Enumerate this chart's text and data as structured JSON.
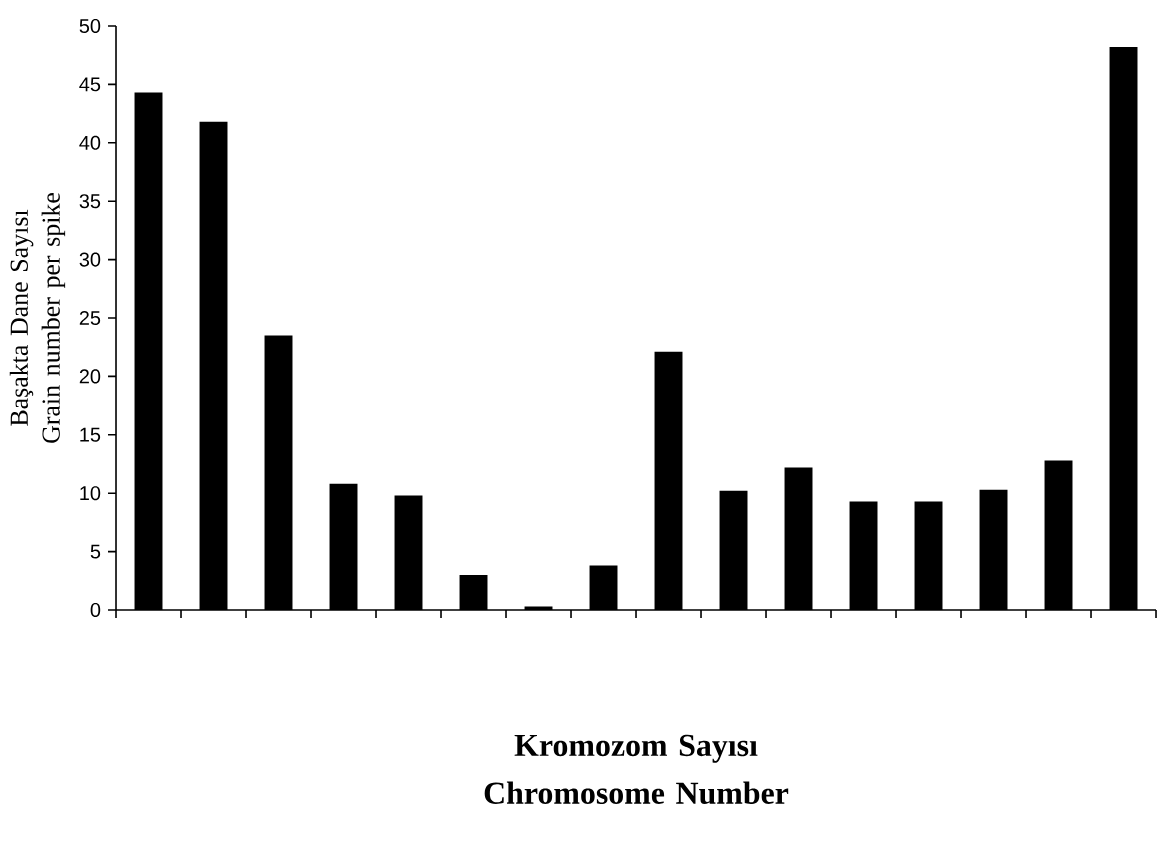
{
  "chart_data": {
    "type": "bar",
    "xlabel": "Kromozom Sayısı Chromosome Number",
    "ylabel": "Başakta Dane Sayısı Grain number per spike",
    "categories": [
      null,
      null,
      null,
      null,
      null,
      null,
      null,
      null,
      null,
      null,
      null,
      null,
      null,
      null,
      null,
      null
    ],
    "values": [
      44.3,
      41.8,
      23.5,
      10.8,
      9.8,
      3.0,
      0.3,
      3.8,
      22.1,
      10.2,
      12.2,
      9.3,
      9.3,
      10.3,
      12.8,
      48.2
    ],
    "color": "#000000",
    "ylim": [
      0,
      50
    ],
    "yticks": [
      0,
      5,
      10,
      15,
      20,
      25,
      30,
      35,
      40,
      45,
      50
    ],
    "tick_labels": "y",
    "grid": false
  }
}
